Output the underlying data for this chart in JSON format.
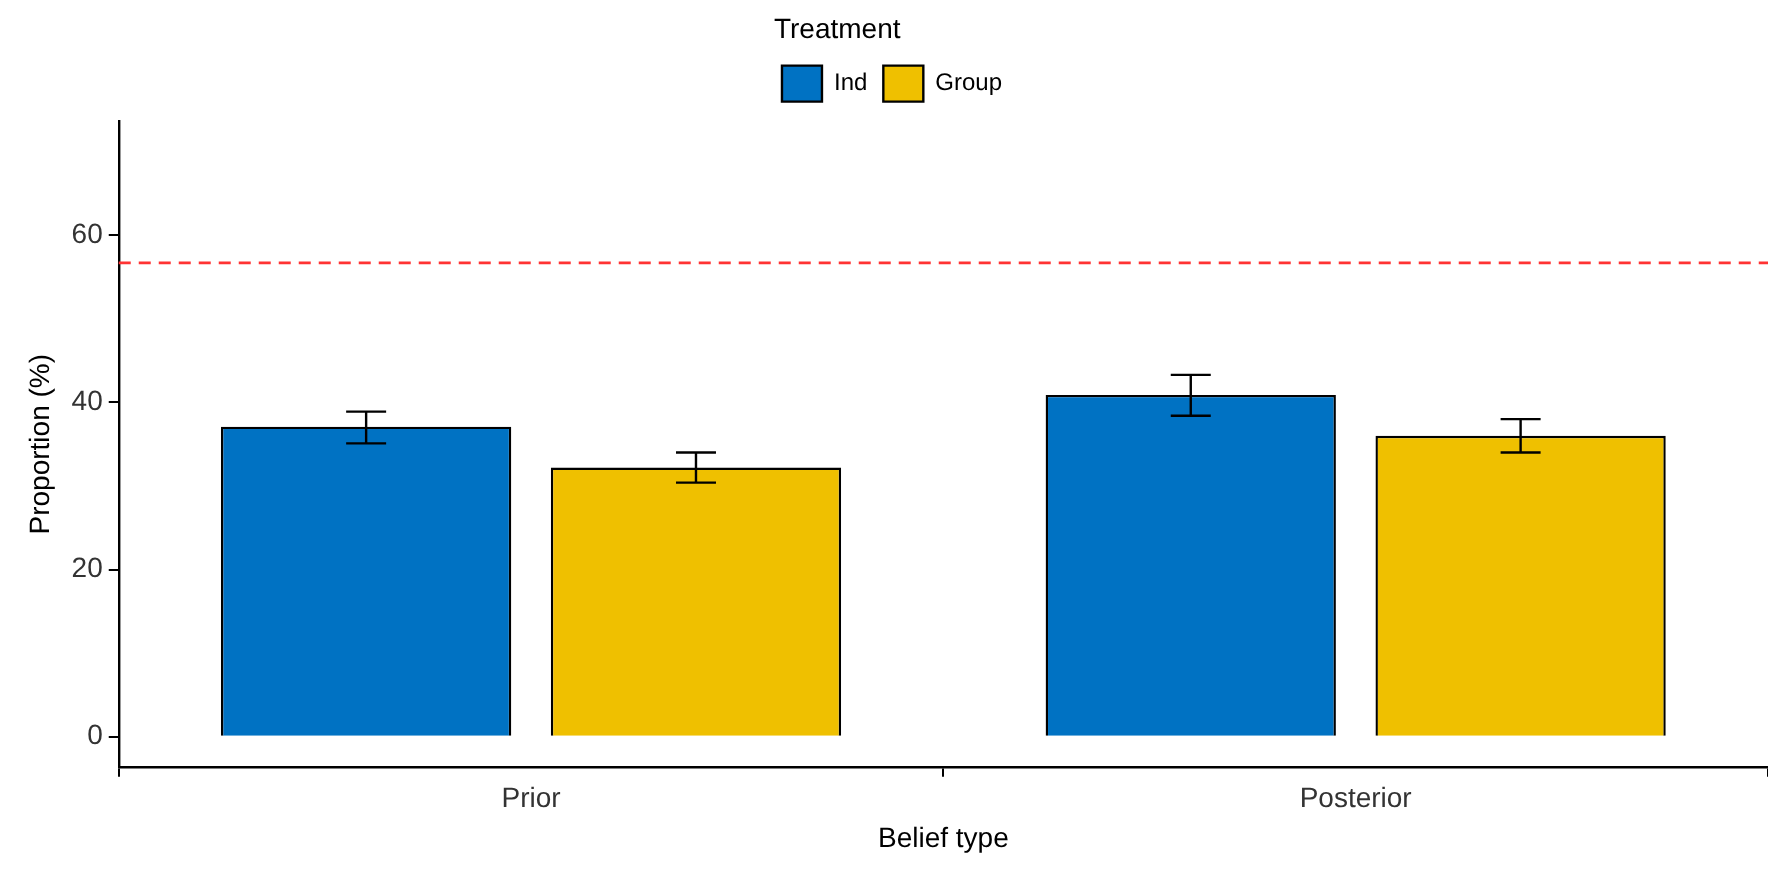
{
  "chart_data": {
    "type": "bar",
    "xlabel": "Belief type",
    "ylabel": "Proportion (%)",
    "legend_title": "Treatment",
    "categories": [
      "Prior",
      "Posterior"
    ],
    "series": [
      {
        "name": "Ind",
        "color": "#0072c3",
        "values": [
          37.1,
          40.9
        ],
        "errors": [
          [
            35.1,
            38.9
          ],
          [
            38.4,
            43.3
          ]
        ]
      },
      {
        "name": "Group",
        "color": "#efc000",
        "values": [
          32.2,
          36.0
        ],
        "errors": [
          [
            30.4,
            34.0
          ],
          [
            34.0,
            38.0
          ]
        ]
      }
    ],
    "ylim": [
      -3.6,
      73.6
    ],
    "yticks": [
      0,
      20,
      40,
      60
    ],
    "grid": false,
    "legend": "top",
    "ref_lines": [
      {
        "axis": "y",
        "value": 56.7,
        "color": "#ff3333",
        "line_style": "dashed"
      }
    ]
  }
}
